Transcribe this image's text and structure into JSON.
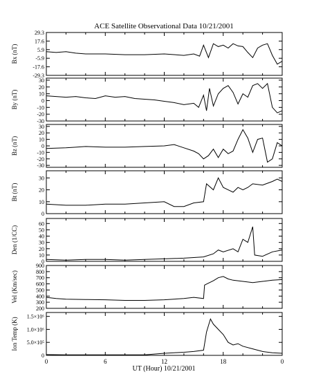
{
  "chart_data": {
    "type": "line",
    "title": "ACE Satellite Observational Data   10/21/2001",
    "xlabel": "UT (Hour)   10/21/2001",
    "x_ticks": [
      "0",
      "6",
      "12",
      "18",
      "0"
    ],
    "xlim": [
      0,
      24
    ],
    "grid": false,
    "panels": [
      {
        "ylabel": "Bx (nT)",
        "ylim": [
          -29.3,
          29.3
        ],
        "yticks": [
          "29.3",
          "17.6",
          "5.9",
          "-5.9",
          "-17.6",
          "-29.3"
        ],
        "ytick_values": [
          29.3,
          17.6,
          5.9,
          -5.9,
          -17.6,
          -29.3
        ],
        "points": [
          [
            0,
            3
          ],
          [
            1,
            2
          ],
          [
            2,
            3
          ],
          [
            3,
            1
          ],
          [
            4,
            0
          ],
          [
            6,
            0
          ],
          [
            8,
            -1
          ],
          [
            10,
            -1
          ],
          [
            12,
            0
          ],
          [
            14,
            -2
          ],
          [
            15,
            0
          ],
          [
            15.6,
            -3
          ],
          [
            16,
            12
          ],
          [
            16.5,
            -5
          ],
          [
            17,
            14
          ],
          [
            17.5,
            10
          ],
          [
            18,
            12
          ],
          [
            18.5,
            8
          ],
          [
            19,
            14
          ],
          [
            19.5,
            11
          ],
          [
            20,
            10
          ],
          [
            20.5,
            2
          ],
          [
            21,
            -5
          ],
          [
            21.5,
            8
          ],
          [
            22,
            12
          ],
          [
            22.5,
            14
          ],
          [
            23,
            -2
          ],
          [
            23.5,
            -14
          ],
          [
            24,
            -10
          ]
        ]
      },
      {
        "ylabel": "By (nT)",
        "ylim": [
          -30,
          33
        ],
        "yticks": [
          "30",
          "20",
          "10",
          "0",
          "-10",
          "-20",
          "-30"
        ],
        "ytick_values": [
          30,
          20,
          10,
          0,
          -10,
          -20,
          -30
        ],
        "points": [
          [
            0,
            7
          ],
          [
            1,
            6
          ],
          [
            2,
            5
          ],
          [
            3,
            6
          ],
          [
            4,
            4
          ],
          [
            5,
            3
          ],
          [
            6,
            7
          ],
          [
            7,
            5
          ],
          [
            8,
            6
          ],
          [
            9,
            3
          ],
          [
            10,
            2
          ],
          [
            11,
            1
          ],
          [
            12,
            -1
          ],
          [
            13,
            -3
          ],
          [
            14,
            -6
          ],
          [
            15,
            -4
          ],
          [
            15.5,
            -10
          ],
          [
            16,
            8
          ],
          [
            16.3,
            -15
          ],
          [
            16.6,
            18
          ],
          [
            17,
            -8
          ],
          [
            17.5,
            10
          ],
          [
            18,
            18
          ],
          [
            18.5,
            22
          ],
          [
            19,
            12
          ],
          [
            19.5,
            -5
          ],
          [
            20,
            10
          ],
          [
            20.5,
            5
          ],
          [
            21,
            22
          ],
          [
            21.5,
            25
          ],
          [
            22,
            18
          ],
          [
            22.5,
            25
          ],
          [
            23,
            -10
          ],
          [
            23.5,
            -18
          ],
          [
            24,
            -15
          ]
        ]
      },
      {
        "ylabel": "Bz (nT)",
        "ylim": [
          -33,
          33
        ],
        "yticks": [
          "30",
          "20",
          "10",
          "0",
          "-10",
          "-20",
          "-30"
        ],
        "ytick_values": [
          30,
          20,
          10,
          0,
          -10,
          -20,
          -30
        ],
        "points": [
          [
            0,
            -4
          ],
          [
            2,
            -3
          ],
          [
            3,
            -2
          ],
          [
            4,
            -1
          ],
          [
            6,
            -2
          ],
          [
            8,
            -2
          ],
          [
            10,
            -1
          ],
          [
            12,
            0
          ],
          [
            13,
            2
          ],
          [
            14,
            -3
          ],
          [
            15,
            -8
          ],
          [
            15.5,
            -12
          ],
          [
            16,
            -20
          ],
          [
            16.5,
            -15
          ],
          [
            17,
            -5
          ],
          [
            17.5,
            -18
          ],
          [
            18,
            -5
          ],
          [
            18.5,
            -12
          ],
          [
            19,
            -8
          ],
          [
            19.5,
            10
          ],
          [
            20,
            25
          ],
          [
            20.5,
            12
          ],
          [
            21,
            -10
          ],
          [
            21.5,
            10
          ],
          [
            22,
            12
          ],
          [
            22.5,
            -25
          ],
          [
            23,
            -20
          ],
          [
            23.5,
            5
          ],
          [
            24,
            0
          ]
        ]
      },
      {
        "ylabel": "Bt (nT)",
        "ylim": [
          0,
          36
        ],
        "yticks": [
          "30",
          "20",
          "10",
          "0"
        ],
        "ytick_values": [
          30,
          20,
          10,
          0
        ],
        "points": [
          [
            0,
            8
          ],
          [
            2,
            7
          ],
          [
            4,
            7
          ],
          [
            6,
            8
          ],
          [
            8,
            8
          ],
          [
            10,
            9
          ],
          [
            12,
            10
          ],
          [
            13,
            6
          ],
          [
            14,
            6
          ],
          [
            15,
            9
          ],
          [
            16,
            10
          ],
          [
            16.3,
            25
          ],
          [
            17,
            20
          ],
          [
            17.5,
            30
          ],
          [
            18,
            22
          ],
          [
            18.5,
            20
          ],
          [
            19,
            18
          ],
          [
            19.5,
            22
          ],
          [
            20,
            20
          ],
          [
            20.5,
            22
          ],
          [
            21,
            25
          ],
          [
            22,
            24
          ],
          [
            23,
            27
          ],
          [
            23.5,
            29
          ],
          [
            24,
            27
          ]
        ]
      },
      {
        "ylabel": "Den (1/CC)",
        "ylim": [
          0,
          68
        ],
        "yticks": [
          "60",
          "50",
          "40",
          "30",
          "20",
          "10",
          "0"
        ],
        "ytick_values": [
          60,
          50,
          40,
          30,
          20,
          10,
          0
        ],
        "points": [
          [
            0,
            3
          ],
          [
            2,
            2
          ],
          [
            4,
            3
          ],
          [
            6,
            3
          ],
          [
            8,
            2
          ],
          [
            10,
            3
          ],
          [
            12,
            4
          ],
          [
            14,
            5
          ],
          [
            15,
            6
          ],
          [
            16,
            7
          ],
          [
            17,
            12
          ],
          [
            17.5,
            18
          ],
          [
            18,
            15
          ],
          [
            19,
            20
          ],
          [
            19.5,
            15
          ],
          [
            20,
            35
          ],
          [
            20.5,
            30
          ],
          [
            21,
            55
          ],
          [
            21.2,
            10
          ],
          [
            22,
            8
          ],
          [
            23,
            15
          ],
          [
            24,
            18
          ]
        ]
      },
      {
        "ylabel": "Vel (Km/sec)",
        "ylim": [
          200,
          900
        ],
        "yticks": [
          "900",
          "800",
          "700",
          "600",
          "500",
          "400",
          "300",
          "200"
        ],
        "ytick_values": [
          900,
          800,
          700,
          600,
          500,
          400,
          300,
          200
        ],
        "points": [
          [
            0,
            380
          ],
          [
            1,
            360
          ],
          [
            2,
            350
          ],
          [
            4,
            345
          ],
          [
            6,
            340
          ],
          [
            8,
            330
          ],
          [
            10,
            330
          ],
          [
            12,
            340
          ],
          [
            14,
            360
          ],
          [
            15,
            380
          ],
          [
            16,
            360
          ],
          [
            16.1,
            580
          ],
          [
            17,
            650
          ],
          [
            17.5,
            700
          ],
          [
            18,
            720
          ],
          [
            18.5,
            680
          ],
          [
            19,
            660
          ],
          [
            20,
            640
          ],
          [
            21,
            620
          ],
          [
            22,
            640
          ],
          [
            23,
            660
          ],
          [
            24,
            670
          ]
        ]
      },
      {
        "ylabel": "Ion Temp (K)",
        "ylim": [
          0,
          1650000
        ],
        "yticks": [
          "1.5×10⁶",
          "1.0×10⁶",
          "5.0×10⁵",
          "0"
        ],
        "ytick_values": [
          1500000,
          1000000,
          500000,
          0
        ],
        "points": [
          [
            0,
            30000
          ],
          [
            2,
            20000
          ],
          [
            4,
            20000
          ],
          [
            6,
            20000
          ],
          [
            8,
            20000
          ],
          [
            10,
            20000
          ],
          [
            12,
            80000
          ],
          [
            13,
            100000
          ],
          [
            14,
            120000
          ],
          [
            15,
            150000
          ],
          [
            16,
            200000
          ],
          [
            16.3,
            900000
          ],
          [
            16.7,
            1400000
          ],
          [
            17,
            1200000
          ],
          [
            17.5,
            1000000
          ],
          [
            18,
            800000
          ],
          [
            18.5,
            500000
          ],
          [
            19,
            400000
          ],
          [
            19.5,
            450000
          ],
          [
            20,
            350000
          ],
          [
            21,
            250000
          ],
          [
            22,
            150000
          ],
          [
            23,
            100000
          ],
          [
            24,
            80000
          ]
        ]
      }
    ]
  }
}
